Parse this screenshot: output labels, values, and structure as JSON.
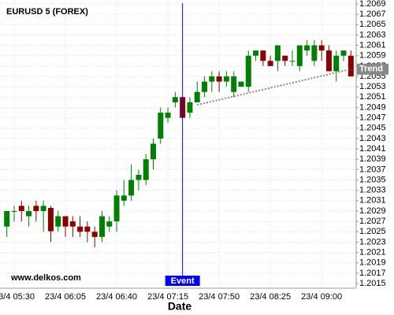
{
  "chart_data": {
    "type": "candlestick",
    "title": "EURUSD 5 (FOREX)",
    "watermark": "www.delkos.com",
    "x_label": "Date",
    "categories": [
      null,
      "23/4 05:30",
      null,
      null,
      null,
      null,
      null,
      null,
      "23/4 06:05",
      null,
      null,
      null,
      null,
      null,
      null,
      "23/4 06:40",
      null,
      null,
      null,
      null,
      null,
      null,
      "23/4 07:15",
      null,
      null,
      null,
      null,
      null,
      null,
      "23/4 07:50",
      null,
      null,
      null,
      null,
      null,
      null,
      "23/4 08:25",
      null,
      null,
      null,
      null,
      null,
      null,
      "23/4 09:00",
      null,
      null,
      null,
      null
    ],
    "open": [
      1.2026,
      1.2029,
      1.203,
      1.2028,
      1.203,
      1.2029,
      1.20296,
      1.2026,
      1.2028,
      1.2027,
      1.2026,
      1.2026,
      1.2025,
      1.2024,
      1.2026,
      1.2027,
      1.2031,
      1.2032,
      1.2035,
      1.2035,
      1.2039,
      1.2043,
      1.2047,
      1.205,
      1.2051,
      1.2048,
      1.205,
      1.2052,
      1.2054,
      1.2055,
      1.2054,
      1.2052,
      1.2053,
      1.2053,
      1.2059,
      1.206,
      1.2058,
      1.2058,
      1.2059,
      1.2058,
      1.2057,
      1.206,
      1.2058,
      1.2061,
      1.206,
      1.2056,
      1.2059,
      1.2059
    ],
    "high": [
      1.2029,
      1.203,
      1.2031,
      1.203,
      1.2031,
      1.2031,
      1.203,
      1.2029,
      1.2028,
      1.2028,
      1.2028,
      1.2027,
      1.2026,
      1.2029,
      1.2028,
      1.2033,
      1.2035,
      1.2038,
      1.2037,
      1.204,
      1.2043,
      1.2049,
      1.2049,
      1.2052,
      1.2051,
      1.2051,
      1.2054,
      1.2055,
      1.2056,
      1.2056,
      1.2056,
      1.2056,
      1.2054,
      1.206,
      1.206,
      1.206,
      1.2059,
      1.2061,
      1.2059,
      1.206,
      1.2061,
      1.2062,
      1.2062,
      1.2062,
      1.2061,
      1.206,
      1.206,
      1.206
    ],
    "low": [
      1.2024,
      1.2027,
      1.2027,
      1.2026,
      1.2027,
      1.2025,
      1.2023,
      1.2025,
      1.2024,
      1.2024,
      1.2024,
      1.2023,
      1.2022,
      1.2023,
      1.2025,
      1.2025,
      1.203,
      1.2031,
      1.2033,
      1.2034,
      1.2037,
      1.2042,
      1.2046,
      1.2049,
      1.2047,
      1.2047,
      1.205,
      1.2051,
      1.2052,
      1.2052,
      1.2053,
      1.2051,
      1.2053,
      1.2052,
      1.2058,
      1.2057,
      1.2057,
      1.2056,
      1.2057,
      1.2057,
      1.2056,
      1.2059,
      1.2057,
      1.2058,
      1.2056,
      1.2054,
      1.2058,
      1.2055
    ],
    "close": [
      1.2029,
      1.2029,
      1.2029,
      1.2029,
      1.2029,
      1.203,
      1.20251,
      1.2028,
      1.2026,
      1.2026,
      1.2025,
      1.2025,
      1.2024,
      1.2028,
      1.2027,
      1.2032,
      1.2032,
      1.2035,
      1.2036,
      1.2039,
      1.2042,
      1.2048,
      1.2048,
      1.2051,
      1.2047,
      1.205,
      1.2052,
      1.2054,
      1.2055,
      1.2054,
      1.2055,
      1.2055,
      1.2054,
      1.2059,
      1.206,
      1.2058,
      1.2057,
      1.2061,
      1.2058,
      1.2058,
      1.2061,
      1.2061,
      1.2061,
      1.206,
      1.2056,
      1.2059,
      1.206,
      1.2055
    ],
    "up_color": "#008000",
    "down_color": "#8b0000",
    "ylim": [
      1.2014,
      1.207
    ],
    "yticks": [
      1.2015,
      1.2017,
      1.2019,
      1.2021,
      1.2023,
      1.2025,
      1.2027,
      1.2029,
      1.2031,
      1.2033,
      1.2035,
      1.2037,
      1.2039,
      1.2041,
      1.2043,
      1.2045,
      1.2047,
      1.2049,
      1.2051,
      1.2053,
      1.2055,
      1.2057,
      1.2059,
      1.2061,
      1.2063,
      1.2065,
      1.2067,
      1.2069
    ],
    "grid": true,
    "event": {
      "index": 24,
      "label": "Event",
      "color": "#0000ff"
    },
    "trend": {
      "label": "Trend",
      "index": [
        26,
        47
      ],
      "values": [
        1.20495,
        1.20564
      ],
      "color": "#888888"
    }
  }
}
